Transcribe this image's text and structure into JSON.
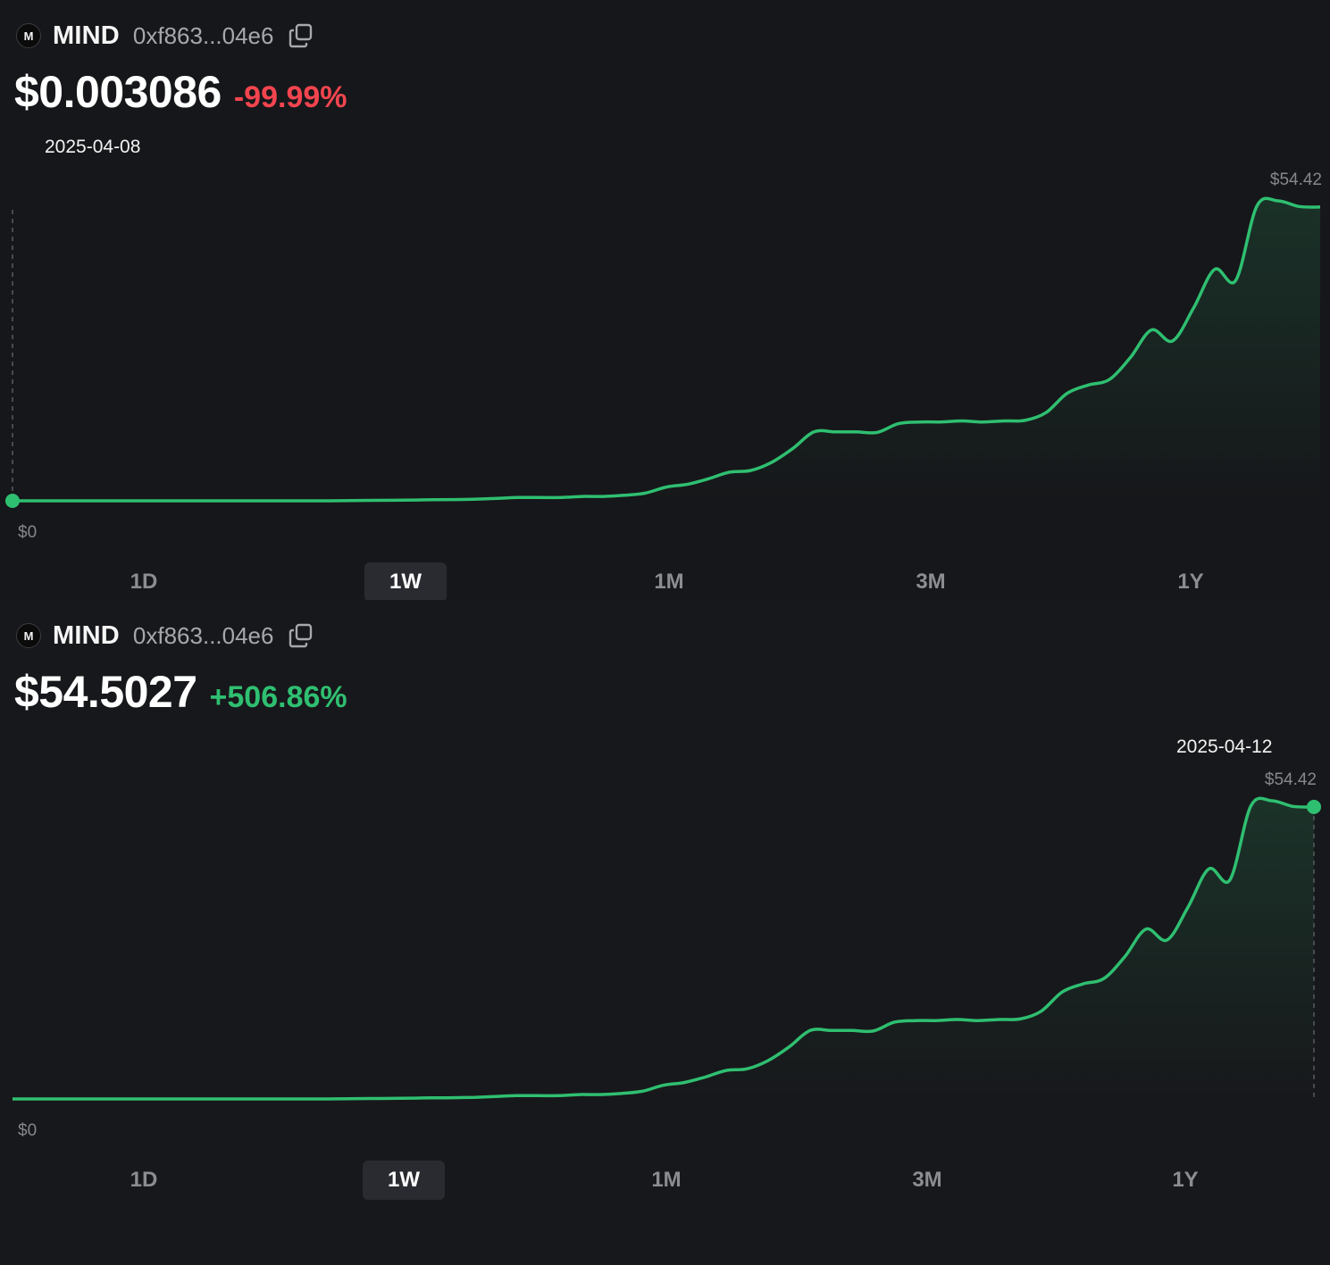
{
  "panels": [
    {
      "token": {
        "logo_letter": "M",
        "symbol": "MIND",
        "address": "0xf863...04e6"
      },
      "price": "$0.003086",
      "change": "-99.99%",
      "change_color": "#f2454f",
      "hover_date": "2025-04-08",
      "max_label": "$54.42",
      "min_label": "$0",
      "tabs": [
        "1D",
        "1W",
        "1M",
        "3M",
        "1Y"
      ],
      "active_tab": "1W"
    },
    {
      "token": {
        "logo_letter": "M",
        "symbol": "MIND",
        "address": "0xf863...04e6"
      },
      "price": "$54.5027",
      "change": "+506.86%",
      "change_color": "#2fbf71",
      "hover_date": "2025-04-12",
      "max_label": "$54.42",
      "min_label": "$0",
      "tabs": [
        "1D",
        "1W",
        "1M",
        "3M",
        "1Y"
      ],
      "active_tab": "1W"
    }
  ],
  "colors": {
    "line": "#2fbf71",
    "background": "#16171a",
    "negative": "#f2454f",
    "positive": "#2fbf71"
  },
  "chart_data": [
    {
      "type": "line",
      "title": "",
      "series": [
        {
          "values": [
            0.0,
            0.0,
            0.0,
            0.0,
            0.0,
            0.0,
            0.0,
            0.0,
            0.0,
            0.0,
            0.0,
            0.0,
            0.0,
            0.0,
            0.0,
            0.0,
            0.05,
            0.08,
            0.1,
            0.15,
            0.2,
            0.22,
            0.3,
            0.45,
            0.6,
            0.6,
            0.6,
            0.8,
            0.8,
            1.0,
            1.4,
            2.5,
            3.0,
            4.0,
            5.2,
            5.5,
            7.0,
            9.5,
            12.5,
            12.5,
            12.5,
            12.4,
            14.0,
            14.3,
            14.3,
            14.5,
            14.3,
            14.5,
            14.6,
            16.0,
            19.5,
            21.0,
            22.0,
            26.0,
            31.0,
            29.0,
            35.0,
            42.0,
            40.0,
            53.5,
            54.42,
            53.4,
            53.3
          ]
        }
      ],
      "ylim": [
        0,
        54.42
      ],
      "annotations": [
        "$54.42",
        "$0"
      ],
      "hover": {
        "date": "2025-04-08",
        "index": 0,
        "value": 0.003086
      },
      "grid": false
    },
    {
      "type": "line",
      "title": "",
      "series": [
        {
          "values": [
            0.0,
            0.0,
            0.0,
            0.0,
            0.0,
            0.0,
            0.0,
            0.0,
            0.0,
            0.0,
            0.0,
            0.0,
            0.0,
            0.0,
            0.0,
            0.0,
            0.05,
            0.08,
            0.1,
            0.15,
            0.2,
            0.22,
            0.3,
            0.45,
            0.6,
            0.6,
            0.6,
            0.8,
            0.8,
            1.0,
            1.4,
            2.5,
            3.0,
            4.0,
            5.2,
            5.5,
            7.0,
            9.5,
            12.5,
            12.5,
            12.5,
            12.4,
            14.0,
            14.3,
            14.3,
            14.5,
            14.3,
            14.5,
            14.6,
            16.0,
            19.5,
            21.0,
            22.0,
            26.0,
            31.0,
            29.0,
            35.0,
            42.0,
            40.0,
            53.5,
            54.42,
            53.4,
            53.3
          ]
        }
      ],
      "ylim": [
        0,
        54.42
      ],
      "annotations": [
        "$54.42",
        "$0"
      ],
      "hover": {
        "date": "2025-04-12",
        "index": 62,
        "value": 54.5027
      },
      "grid": false
    }
  ]
}
